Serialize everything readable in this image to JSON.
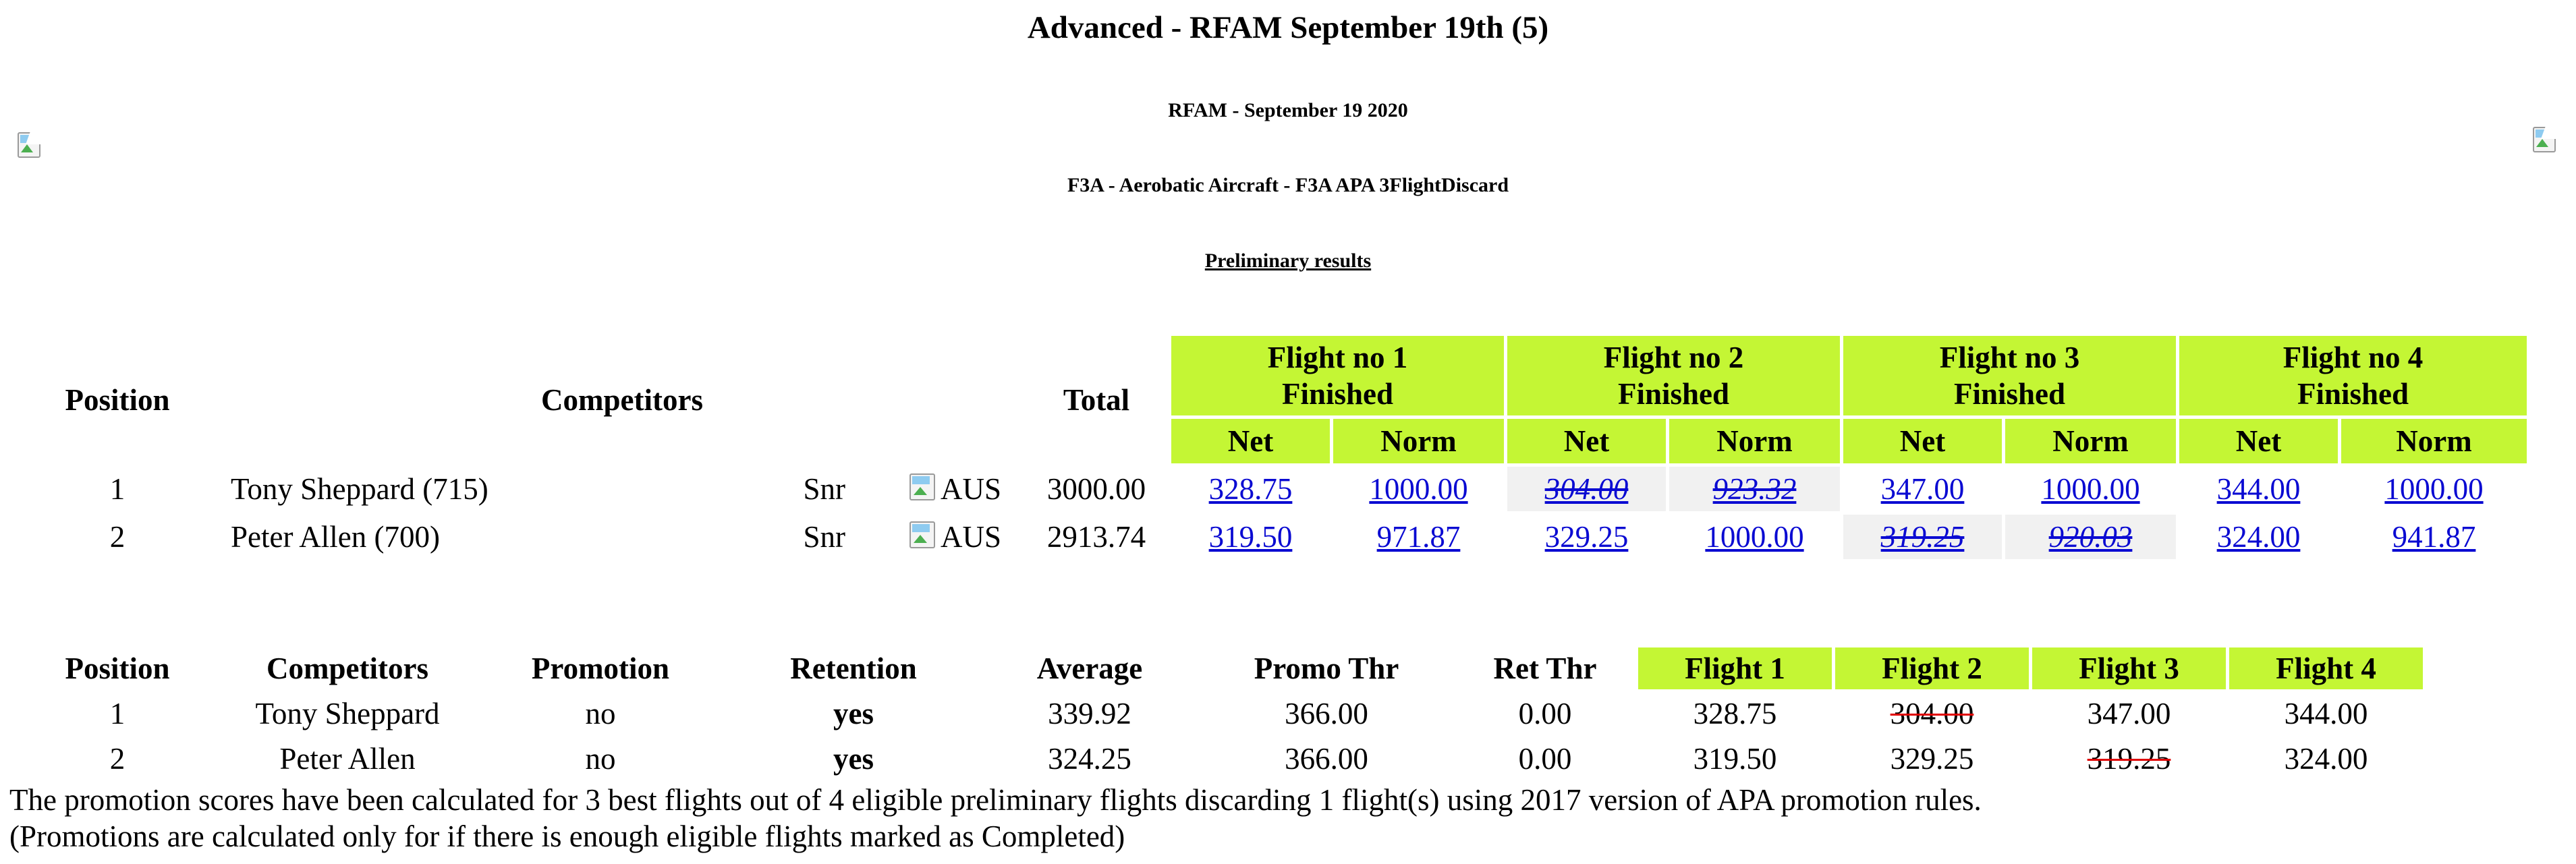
{
  "title": "Advanced - RFAM September 19th (5)",
  "event": "RFAM - September 19 2020",
  "class_name": "F3A - Aerobatic Aircraft - F3A APA 3FlightDiscard",
  "results_label": "Preliminary results",
  "results": {
    "headers": {
      "position": "Position",
      "competitors": "Competitors",
      "total": "Total",
      "flights": [
        {
          "line1": "Flight no 1",
          "line2": "Finished"
        },
        {
          "line1": "Flight no 2",
          "line2": "Finished"
        },
        {
          "line1": "Flight no 3",
          "line2": "Finished"
        },
        {
          "line1": "Flight no 4",
          "line2": "Finished"
        }
      ],
      "net": "Net",
      "norm": "Norm"
    },
    "rows": [
      {
        "position": "1",
        "name": "Tony Sheppard (715)",
        "category": "Snr",
        "country": "AUS",
        "total": "3000.00",
        "flights": [
          {
            "net": "328.75",
            "norm": "1000.00"
          },
          {
            "net": "304.00",
            "norm": "923.32"
          },
          {
            "net": "347.00",
            "norm": "1000.00"
          },
          {
            "net": "344.00",
            "norm": "1000.00"
          }
        ]
      },
      {
        "position": "2",
        "name": "Peter Allen (700)",
        "category": "Snr",
        "country": "AUS",
        "total": "2913.74",
        "flights": [
          {
            "net": "319.50",
            "norm": "971.87"
          },
          {
            "net": "329.25",
            "norm": "1000.00"
          },
          {
            "net": "319.25",
            "norm": "920.03"
          },
          {
            "net": "324.00",
            "norm": "941.87"
          }
        ]
      }
    ]
  },
  "promotion": {
    "headers": {
      "position": "Position",
      "competitors": "Competitors",
      "promotion": "Promotion",
      "retention": "Retention",
      "average": "Average",
      "promo_thr": "Promo Thr",
      "ret_thr": "Ret Thr",
      "flights": [
        "Flight 1",
        "Flight 2",
        "Flight 3",
        "Flight 4"
      ]
    },
    "rows": [
      {
        "position": "1",
        "name": "Tony Sheppard",
        "promotion": "no",
        "retention": "yes",
        "average": "339.92",
        "promo_thr": "366.00",
        "ret_thr": "0.00",
        "flights": [
          "328.75",
          "304.00",
          "347.00",
          "344.00"
        ]
      },
      {
        "position": "2",
        "name": "Peter Allen",
        "promotion": "no",
        "retention": "yes",
        "average": "324.25",
        "promo_thr": "366.00",
        "ret_thr": "0.00",
        "flights": [
          "319.50",
          "329.25",
          "319.25",
          "324.00"
        ]
      }
    ]
  },
  "notes": {
    "line1": "The promotion scores have been calculated for 3 best flights out of 4 eligible preliminary flights discarding 1 flight(s) using 2017 version of APA promotion rules.",
    "line2": "(Promotions are calculated only for if there is enough eligible flights marked as Completed)"
  },
  "colors": {
    "header_green": "#c4f634",
    "link_blue": "#0a0ad2",
    "discard_bg": "#f1f1f1",
    "strike_red": "#e00000"
  },
  "icons": {
    "logo_left": "broken-image-icon",
    "logo_right": "broken-image-icon",
    "flag": "broken-image-icon"
  }
}
